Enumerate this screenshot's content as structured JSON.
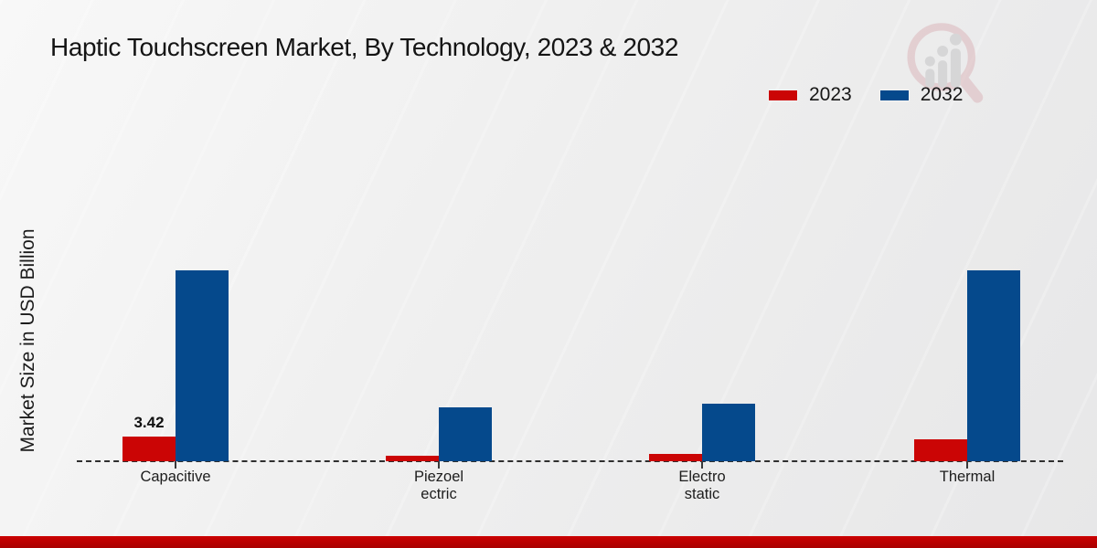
{
  "title": "Haptic Touchscreen Market, By Technology, 2023 & 2032",
  "y_axis_label": "Market Size in USD Billion",
  "legend": [
    {
      "label": "2023",
      "color": "#cb0505"
    },
    {
      "label": "2032",
      "color": "#05498c"
    }
  ],
  "colors": {
    "series_2023": "#cb0505",
    "series_2032": "#05498c",
    "baseline": "#2f2f2f",
    "footer_strip": "#b80000",
    "background": "#ededee"
  },
  "chart_data": {
    "type": "bar",
    "title": "Haptic Touchscreen Market, By Technology, 2023 & 2032",
    "xlabel": "",
    "ylabel": "Market Size in USD Billion",
    "categories": [
      "Capacitive",
      "Piezoelectric",
      "Electrostatic",
      "Thermal"
    ],
    "category_display": [
      [
        "Capacitive"
      ],
      [
        "Piezoel",
        "ectric"
      ],
      [
        "Electro",
        "static"
      ],
      [
        "Thermal"
      ]
    ],
    "series": [
      {
        "name": "2023",
        "color": "#cb0505",
        "values": [
          3.42,
          0.8,
          1.0,
          3.0
        ]
      },
      {
        "name": "2032",
        "color": "#05498c",
        "values": [
          26.4,
          7.5,
          8.0,
          26.4
        ]
      }
    ],
    "data_labels": [
      {
        "series_index": 0,
        "category_index": 0,
        "text": "3.42"
      }
    ],
    "ylim": [
      0,
      30
    ],
    "grid": false,
    "axis_style": "dashed-baseline-only",
    "legend_position": "top-right"
  }
}
